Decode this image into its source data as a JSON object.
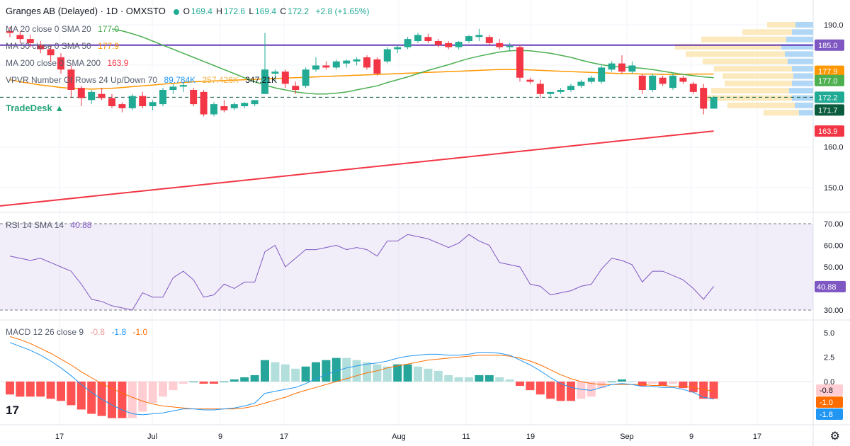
{
  "header": {
    "title": "Granges AB (Delayed) · 1D · OMXSTO",
    "o_label": "O",
    "o": "169.4",
    "h_label": "H",
    "h": "172.6",
    "l_label": "L",
    "l": "169.4",
    "c_label": "C",
    "c": "172.2",
    "change": "+2.8 (+1.65%)"
  },
  "indicators": {
    "ma20": {
      "label": "MA 20 close 0 SMA 20",
      "value": "177.0",
      "color": "#4caf50"
    },
    "ma50": {
      "label": "MA 50 close 0 SMA 50",
      "value": "177.9",
      "color": "#ff9800"
    },
    "ma200": {
      "label": "MA 200 close 0 SMA 200",
      "value": "163.9",
      "color": "#f23645"
    },
    "vpvr": {
      "label": "VPVR Number Of Rows 24 Up/Down 70",
      "up": "89.784K",
      "down": "257.426K",
      "total": "347.21K"
    },
    "rsi": {
      "label": "RSI 14 SMA 14",
      "value": "40.88",
      "color": "#7e57c2"
    },
    "macd": {
      "label": "MACD 12 26 close 9",
      "hist": "-0.8",
      "macd": "-1.8",
      "signal": "-1.0"
    }
  },
  "branding": {
    "tradedesk": "TradeDesk ▲",
    "tv_logo": "17"
  },
  "price_axis": {
    "ticks": [
      "190.0",
      "160.0",
      "150.0"
    ],
    "badges": [
      {
        "value": "185.0",
        "color": "#7e57c2"
      },
      {
        "value": "177.9",
        "color": "#ff9800"
      },
      {
        "value": "177.0",
        "color": "#4caf50"
      },
      {
        "value": "172.2",
        "color": "#22ab94"
      },
      {
        "value": "171.7",
        "color": "#0b5b3e"
      },
      {
        "value": "163.9",
        "color": "#f23645"
      }
    ]
  },
  "rsi_axis": {
    "ticks": [
      "70.00",
      "60.00",
      "50.00",
      "40.00",
      "30.00"
    ],
    "badge": "40.88"
  },
  "macd_axis": {
    "ticks": [
      "5.0",
      "2.5",
      "0.0"
    ],
    "badges": [
      {
        "value": "-0.8",
        "color": "#ffcdd2",
        "text": "#131722"
      },
      {
        "value": "-1.0",
        "color": "#ff6d00",
        "text": "#ffffff"
      },
      {
        "value": "-1.8",
        "color": "#2196f3",
        "text": "#ffffff"
      }
    ]
  },
  "time_axis": [
    "17",
    "Jul",
    "9",
    "17",
    "Aug",
    "11",
    "19",
    "Sep",
    "9",
    "17"
  ],
  "chart_data": {
    "type": "candlestick",
    "ylim": [
      145,
      192
    ],
    "horizontal_line": 185.0,
    "candles": [
      {
        "o": 188.5,
        "h": 189.5,
        "l": 187.0,
        "c": 188.0
      },
      {
        "o": 187.5,
        "h": 188.5,
        "l": 185.5,
        "c": 186.5
      },
      {
        "o": 186.5,
        "h": 187.5,
        "l": 184.5,
        "c": 185.5
      },
      {
        "o": 185.0,
        "h": 186.0,
        "l": 183.0,
        "c": 184.0
      },
      {
        "o": 184.0,
        "h": 185.0,
        "l": 181.0,
        "c": 182.5
      },
      {
        "o": 182.0,
        "h": 183.0,
        "l": 178.0,
        "c": 179.0
      },
      {
        "o": 179.0,
        "h": 180.0,
        "l": 172.0,
        "c": 174.0
      },
      {
        "o": 174.5,
        "h": 175.0,
        "l": 170.0,
        "c": 172.0
      },
      {
        "o": 171.5,
        "h": 174.0,
        "l": 170.5,
        "c": 173.5
      },
      {
        "o": 173.0,
        "h": 174.5,
        "l": 171.5,
        "c": 172.0
      },
      {
        "o": 172.0,
        "h": 173.0,
        "l": 169.5,
        "c": 170.0
      },
      {
        "o": 170.5,
        "h": 171.0,
        "l": 168.5,
        "c": 169.5
      },
      {
        "o": 169.5,
        "h": 173.0,
        "l": 169.0,
        "c": 172.5
      },
      {
        "o": 172.5,
        "h": 173.5,
        "l": 169.5,
        "c": 170.0
      },
      {
        "o": 170.0,
        "h": 171.5,
        "l": 169.0,
        "c": 171.0
      },
      {
        "o": 170.5,
        "h": 174.5,
        "l": 170.0,
        "c": 174.0
      },
      {
        "o": 174.0,
        "h": 175.5,
        "l": 173.0,
        "c": 174.8
      },
      {
        "o": 174.8,
        "h": 176.0,
        "l": 173.5,
        "c": 175.2
      },
      {
        "o": 174.0,
        "h": 174.5,
        "l": 170.0,
        "c": 170.5
      },
      {
        "o": 173.5,
        "h": 174.0,
        "l": 167.5,
        "c": 168.0
      },
      {
        "o": 168.0,
        "h": 171.0,
        "l": 167.5,
        "c": 170.5
      },
      {
        "o": 170.0,
        "h": 171.5,
        "l": 168.5,
        "c": 169.0
      },
      {
        "o": 169.5,
        "h": 171.0,
        "l": 169.0,
        "c": 170.5
      },
      {
        "o": 170.0,
        "h": 171.0,
        "l": 169.5,
        "c": 170.8
      },
      {
        "o": 170.5,
        "h": 171.5,
        "l": 170.0,
        "c": 171.5
      },
      {
        "o": 173.0,
        "h": 188.0,
        "l": 173.0,
        "c": 179.0
      },
      {
        "o": 178.0,
        "h": 179.0,
        "l": 176.0,
        "c": 178.5
      },
      {
        "o": 178.5,
        "h": 179.0,
        "l": 174.5,
        "c": 175.5
      },
      {
        "o": 175.0,
        "h": 176.0,
        "l": 173.0,
        "c": 174.0
      },
      {
        "o": 175.0,
        "h": 179.5,
        "l": 174.5,
        "c": 179.0
      },
      {
        "o": 179.0,
        "h": 182.0,
        "l": 178.5,
        "c": 180.0
      },
      {
        "o": 180.0,
        "h": 181.0,
        "l": 179.0,
        "c": 179.5
      },
      {
        "o": 179.5,
        "h": 181.5,
        "l": 179.0,
        "c": 181.0
      },
      {
        "o": 180.5,
        "h": 181.5,
        "l": 179.5,
        "c": 181.2
      },
      {
        "o": 181.0,
        "h": 182.0,
        "l": 180.0,
        "c": 181.5
      },
      {
        "o": 182.0,
        "h": 182.5,
        "l": 179.0,
        "c": 179.5
      },
      {
        "o": 181.5,
        "h": 182.0,
        "l": 177.5,
        "c": 178.0
      },
      {
        "o": 181.0,
        "h": 184.5,
        "l": 180.5,
        "c": 184.0
      },
      {
        "o": 184.0,
        "h": 185.0,
        "l": 183.0,
        "c": 184.5
      },
      {
        "o": 184.5,
        "h": 187.0,
        "l": 184.0,
        "c": 186.5
      },
      {
        "o": 186.0,
        "h": 188.0,
        "l": 185.5,
        "c": 187.5
      },
      {
        "o": 187.0,
        "h": 187.8,
        "l": 185.5,
        "c": 186.0
      },
      {
        "o": 186.0,
        "h": 186.5,
        "l": 184.5,
        "c": 185.0
      },
      {
        "o": 185.5,
        "h": 186.0,
        "l": 184.0,
        "c": 184.5
      },
      {
        "o": 184.5,
        "h": 186.0,
        "l": 184.0,
        "c": 185.8
      },
      {
        "o": 186.0,
        "h": 187.5,
        "l": 185.5,
        "c": 187.2
      },
      {
        "o": 187.0,
        "h": 189.0,
        "l": 186.0,
        "c": 187.5
      },
      {
        "o": 187.0,
        "h": 187.5,
        "l": 185.0,
        "c": 185.5
      },
      {
        "o": 185.5,
        "h": 186.5,
        "l": 184.0,
        "c": 184.5
      },
      {
        "o": 184.5,
        "h": 185.5,
        "l": 183.5,
        "c": 184.8
      },
      {
        "o": 184.5,
        "h": 185.0,
        "l": 176.0,
        "c": 177.0
      },
      {
        "o": 176.5,
        "h": 177.0,
        "l": 175.5,
        "c": 176.0
      },
      {
        "o": 175.5,
        "h": 176.5,
        "l": 172.0,
        "c": 173.0
      },
      {
        "o": 173.0,
        "h": 173.5,
        "l": 172.0,
        "c": 173.5
      },
      {
        "o": 173.5,
        "h": 174.5,
        "l": 173.0,
        "c": 174.0
      },
      {
        "o": 174.0,
        "h": 175.5,
        "l": 173.5,
        "c": 175.0
      },
      {
        "o": 175.0,
        "h": 176.5,
        "l": 174.5,
        "c": 176.0
      },
      {
        "o": 176.0,
        "h": 177.5,
        "l": 175.5,
        "c": 177.0
      },
      {
        "o": 176.0,
        "h": 180.0,
        "l": 175.5,
        "c": 179.5
      },
      {
        "o": 179.0,
        "h": 181.0,
        "l": 178.5,
        "c": 180.5
      },
      {
        "o": 180.5,
        "h": 182.5,
        "l": 178.0,
        "c": 178.5
      },
      {
        "o": 178.5,
        "h": 181.0,
        "l": 178.0,
        "c": 180.0
      },
      {
        "o": 177.5,
        "h": 178.0,
        "l": 173.0,
        "c": 174.0
      },
      {
        "o": 174.0,
        "h": 178.0,
        "l": 173.5,
        "c": 177.5
      },
      {
        "o": 177.0,
        "h": 177.5,
        "l": 175.0,
        "c": 175.5
      },
      {
        "o": 174.5,
        "h": 178.0,
        "l": 174.0,
        "c": 177.5
      },
      {
        "o": 177.0,
        "h": 177.5,
        "l": 175.5,
        "c": 176.0
      },
      {
        "o": 175.5,
        "h": 176.0,
        "l": 173.0,
        "c": 173.5
      },
      {
        "o": 174.5,
        "h": 175.5,
        "l": 168.0,
        "c": 169.4
      },
      {
        "o": 169.4,
        "h": 172.6,
        "l": 169.4,
        "c": 172.2
      }
    ],
    "ma20": [
      null,
      null,
      null,
      null,
      null,
      null,
      null,
      null,
      null,
      null,
      189.0,
      188.5,
      187.8,
      187.0,
      186.0,
      185.0,
      184.0,
      183.0,
      182.0,
      181.0,
      180.0,
      179.0,
      178.0,
      177.0,
      176.0,
      175.2,
      174.5,
      174.0,
      173.5,
      173.2,
      173.0,
      173.0,
      173.2,
      173.5,
      174.0,
      174.5,
      175.0,
      175.8,
      176.5,
      177.2,
      178.0,
      178.8,
      179.5,
      180.2,
      181.0,
      181.7,
      182.3,
      182.8,
      183.3,
      183.6,
      183.7,
      183.6,
      183.3,
      183.0,
      182.5,
      182.0,
      181.3,
      180.7,
      180.2,
      179.8,
      179.6,
      179.5,
      179.3,
      179.0,
      178.6,
      178.2,
      177.8,
      177.5,
      177.2,
      177.0
    ],
    "ma50": [
      176.5,
      176.0,
      175.6,
      175.2,
      174.9,
      174.6,
      174.4,
      174.3,
      174.2,
      174.3,
      174.4,
      174.6,
      174.8,
      175.0,
      175.2,
      175.4,
      175.6,
      175.8,
      176.0,
      176.1,
      176.2,
      176.3,
      176.4,
      176.5,
      176.6,
      176.7,
      176.8,
      176.9,
      177.0,
      177.1,
      177.2,
      177.3,
      177.4,
      177.5,
      177.6,
      177.7,
      177.8,
      177.9,
      178.0,
      178.1,
      178.2,
      178.3,
      178.4,
      178.5,
      178.6,
      178.7,
      178.8,
      178.9,
      179.0,
      179.0,
      179.0,
      178.9,
      178.8,
      178.7,
      178.6,
      178.5,
      178.4,
      178.3,
      178.2,
      178.1,
      178.0,
      178.0,
      177.9,
      177.9,
      177.8,
      177.8,
      177.8,
      177.9,
      177.9,
      177.9
    ],
    "ma200": {
      "start": 145.5,
      "end": 163.9
    },
    "rsi": [
      55,
      54,
      53,
      54,
      52,
      50,
      48,
      42,
      35,
      34,
      32,
      31,
      30,
      38,
      36,
      36,
      45,
      48,
      44,
      36,
      37,
      42,
      40,
      43,
      43,
      57,
      60,
      50,
      54,
      58,
      58,
      59,
      60,
      58,
      59,
      58,
      55,
      62,
      62,
      65,
      64,
      63,
      61,
      59,
      61,
      65,
      62,
      60,
      52,
      51,
      50,
      42,
      41,
      37,
      38,
      39,
      41,
      42,
      49,
      54,
      53,
      51,
      43,
      48,
      48,
      46,
      44,
      40,
      35,
      41
    ],
    "rsi_sma": {
      "value": 40.88
    },
    "macd_line": [
      4.0,
      3.6,
      3.2,
      2.7,
      2.1,
      1.4,
      0.6,
      -0.3,
      -1.1,
      -1.8,
      -2.4,
      -2.9,
      -3.3,
      -3.4,
      -3.3,
      -3.2,
      -3.0,
      -2.8,
      -2.8,
      -2.9,
      -2.9,
      -2.8,
      -2.7,
      -2.5,
      -2.2,
      -1.2,
      -1.0,
      -0.8,
      -0.6,
      -0.2,
      0.3,
      0.7,
      1.1,
      1.4,
      1.6,
      1.8,
      1.9,
      2.1,
      2.4,
      2.6,
      2.7,
      2.8,
      2.8,
      2.7,
      2.7,
      2.8,
      3.0,
      3.0,
      2.9,
      2.7,
      2.2,
      1.7,
      1.1,
      0.4,
      -0.2,
      -0.6,
      -0.8,
      -0.9,
      -0.6,
      -0.3,
      -0.2,
      -0.3,
      -0.5,
      -0.5,
      -0.6,
      -0.6,
      -0.8,
      -1.1,
      -1.6,
      -1.8
    ],
    "macd_signal": [
      4.6,
      4.3,
      3.9,
      3.4,
      2.9,
      2.3,
      1.7,
      1.0,
      0.4,
      -0.2,
      -0.7,
      -1.2,
      -1.6,
      -2.0,
      -2.3,
      -2.5,
      -2.6,
      -2.7,
      -2.8,
      -2.8,
      -2.8,
      -2.8,
      -2.8,
      -2.7,
      -2.5,
      -2.2,
      -1.9,
      -1.6,
      -1.2,
      -0.9,
      -0.6,
      -0.3,
      0.0,
      0.3,
      0.6,
      0.9,
      1.1,
      1.4,
      1.6,
      1.8,
      2.0,
      2.2,
      2.3,
      2.4,
      2.5,
      2.6,
      2.7,
      2.7,
      2.7,
      2.6,
      2.4,
      2.1,
      1.7,
      1.2,
      0.7,
      0.3,
      0.0,
      -0.2,
      -0.3,
      -0.3,
      -0.3,
      -0.3,
      -0.3,
      -0.4,
      -0.4,
      -0.5,
      -0.5,
      -0.6,
      -0.8,
      -1.0
    ]
  }
}
